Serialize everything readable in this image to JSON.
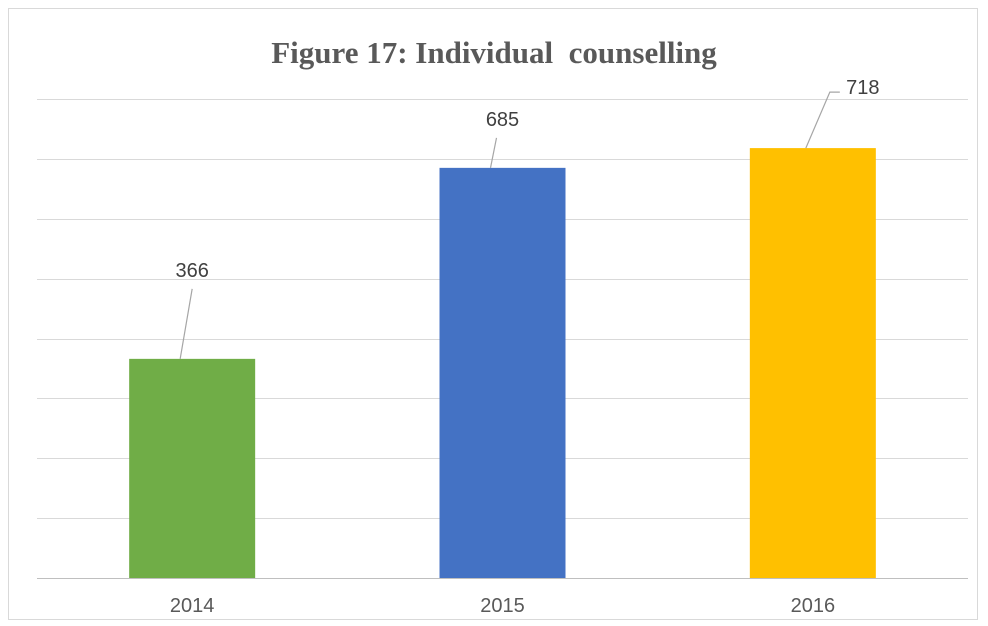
{
  "chart_data": {
    "type": "bar",
    "title": "Figure 17: Individual  counselling",
    "categories": [
      "2014",
      "2015",
      "2016"
    ],
    "values": [
      366,
      685,
      718
    ],
    "colors": [
      "#70ad47",
      "#4472c4",
      "#ffc000"
    ],
    "xlabel": "",
    "ylabel": "",
    "ylim": [
      0,
      800
    ],
    "y_gridline_step": 100,
    "grid": true,
    "legend": "none",
    "data_labels": true
  }
}
